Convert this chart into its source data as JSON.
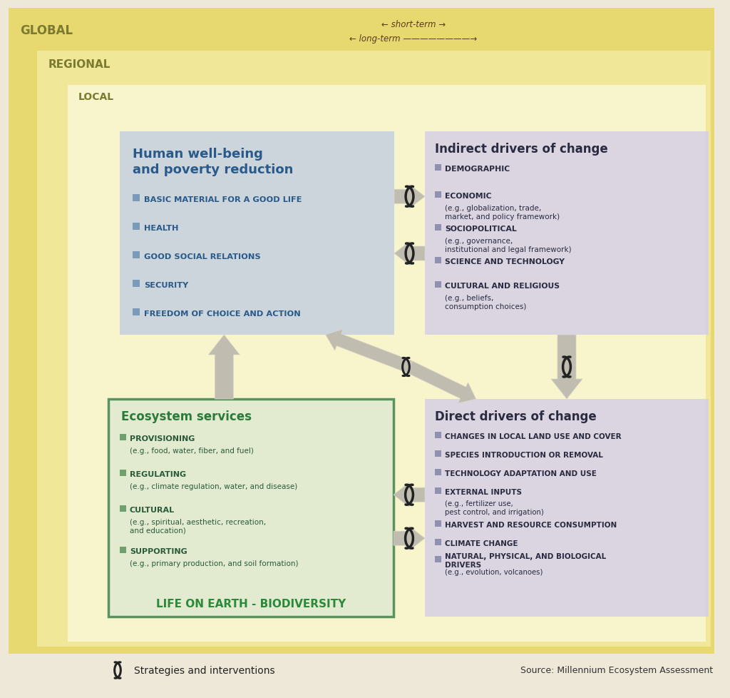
{
  "bg_global_color": "#e8d870",
  "bg_regional_color": "#f0e898",
  "bg_local_color": "#f8f4cc",
  "bg_page_color": "#ede8d8",
  "box_human_color": "#c5d0e0",
  "box_indirect_color": "#d5d0e5",
  "box_ecosystem_color": "#e0ead0",
  "box_ecosystem_border": "#4a8a50",
  "box_direct_color": "#d5d0e5",
  "arrow_color": "#c0bdb0",
  "title_human_color": "#2a5a8a",
  "title_indirect_color": "#2a2a40",
  "title_direct_color": "#2a2a40",
  "title_ecosystem_color": "#2a7a3a",
  "bullet_human_color": "#7a9ab8",
  "bullet_indirect_color": "#9090b0",
  "bullet_ecosystem_color": "#70a070",
  "bullet_direct_color": "#9090b0",
  "label_global_color": "#7a7a30",
  "label_regional_color": "#7a7a30",
  "label_local_color": "#7a7a30",
  "short_term_color": "#5a3a1a",
  "global_label": "GLOBAL",
  "regional_label": "REGIONAL",
  "local_label": "LOCAL",
  "short_term_text": "← short-term →",
  "long_term_text": "← long-term ————————→",
  "human_title": "Human well-being\nand poverty reduction",
  "human_items": [
    "BASIC MATERIAL FOR A GOOD LIFE",
    "HEALTH",
    "GOOD SOCIAL RELATIONS",
    "SECURITY",
    "FREEDOM OF CHOICE AND ACTION"
  ],
  "indirect_title": "Indirect drivers of change",
  "indirect_items_bold": [
    "DEMOGRAPHIC",
    "ECONOMIC",
    "SOCIOPOLITICAL",
    "SCIENCE AND TECHNOLOGY",
    "CULTURAL AND RELIGIOUS"
  ],
  "indirect_items_regular": [
    "",
    " (e.g., globalization, trade,\nmarket, and policy framework)",
    " (e.g., governance,\ninstitutional and legal framework)",
    "",
    " (e.g., beliefs,\nconsumption choices)"
  ],
  "ecosystem_title": "Ecosystem services",
  "ecosystem_items_bold": [
    "PROVISIONING",
    "REGULATING",
    "CULTURAL",
    "SUPPORTING"
  ],
  "ecosystem_items_regular": [
    "(e.g., food, water, fiber, and fuel)",
    "(e.g., climate regulation, water, and disease)",
    "(e.g., spiritual, aesthetic, recreation,\nand education)",
    "(e.g., primary production, and soil formation)"
  ],
  "ecosystem_footer": "LIFE ON EARTH - BIODIVERSITY",
  "direct_title": "Direct drivers of change",
  "direct_items_bold": [
    "CHANGES IN LOCAL LAND USE AND COVER",
    "SPECIES INTRODUCTION OR REMOVAL",
    "TECHNOLOGY ADAPTATION AND USE",
    "EXTERNAL INPUTS",
    "HARVEST AND RESOURCE CONSUMPTION",
    "CLIMATE CHANGE",
    "NATURAL, PHYSICAL, AND BIOLOGICAL\nDRIVERS"
  ],
  "direct_items_regular": [
    "",
    "",
    "",
    " (e.g., fertilizer use,\npest control, and irrigation)",
    "",
    "",
    " (e.g., evolution, volcanoes)"
  ],
  "strategies_text": "Strategies and interventions",
  "source_text": "Source: Millennium Ecosystem Assessment"
}
